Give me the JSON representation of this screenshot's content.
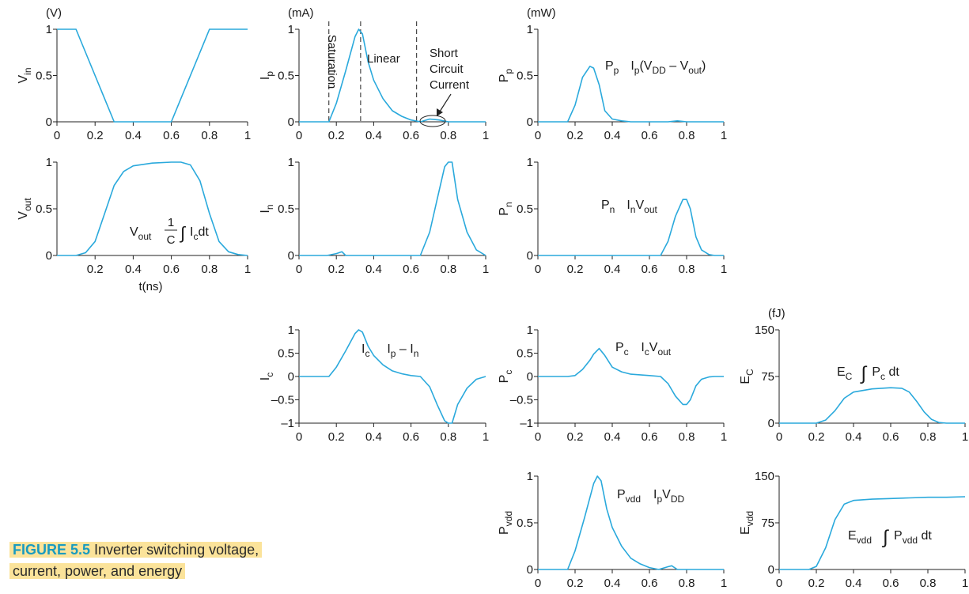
{
  "caption": {
    "number": "FIGURE 5.5",
    "text": "Inverter switching voltage, current, power, and energy"
  },
  "colors": {
    "curve": "#2aa9dc",
    "axis": "#222222",
    "caption_highlight": "#fbe39a",
    "caption_number": "#1a9bbf"
  },
  "chart_data": [
    {
      "id": "vin",
      "type": "line",
      "unit": "(V)",
      "ylabel": "V",
      "ylabel_sub": "in",
      "xlabel": "",
      "xlim": [
        0,
        1
      ],
      "ylim": [
        0,
        1
      ],
      "xticks": [
        "0",
        "0.2",
        "0.4",
        "0.6",
        "0.8",
        "1"
      ],
      "yticks": [
        "0",
        "0.5",
        "1"
      ],
      "x": [
        0,
        0.1,
        0.3,
        0.6,
        0.8,
        1.0
      ],
      "y": [
        1,
        1,
        0,
        0,
        1,
        1
      ]
    },
    {
      "id": "ip",
      "type": "line",
      "unit": "(mA)",
      "ylabel": "I",
      "ylabel_sub": "p",
      "xlabel": "",
      "xlim": [
        0,
        1
      ],
      "ylim": [
        0,
        1
      ],
      "xticks": [
        "0",
        "0.2",
        "0.4",
        "0.6",
        "0.8",
        "1"
      ],
      "yticks": [
        "0",
        "0.5",
        "1"
      ],
      "x": [
        0,
        0.16,
        0.2,
        0.25,
        0.3,
        0.32,
        0.34,
        0.37,
        0.4,
        0.45,
        0.5,
        0.55,
        0.6,
        0.65,
        0.7,
        0.75,
        0.8,
        0.9,
        1.0
      ],
      "y": [
        0,
        0,
        0.2,
        0.55,
        0.92,
        1.0,
        0.95,
        0.65,
        0.45,
        0.25,
        0.12,
        0.06,
        0.02,
        0.0,
        0.03,
        0.02,
        0.0,
        0,
        0
      ],
      "dashed_x": [
        0.16,
        0.33,
        0.63
      ],
      "annotations": [
        "Saturation",
        "Linear",
        "Short",
        "Circuit",
        "Current"
      ]
    },
    {
      "id": "pp",
      "type": "line",
      "unit": "(mW)",
      "ylabel": "P",
      "ylabel_sub": "p",
      "xlabel": "",
      "xlim": [
        0,
        1
      ],
      "ylim": [
        0,
        1
      ],
      "xticks": [
        "0",
        "0.2",
        "0.4",
        "0.6",
        "0.8",
        "1"
      ],
      "yticks": [
        "0",
        "0.5",
        "1"
      ],
      "x": [
        0,
        0.16,
        0.2,
        0.24,
        0.28,
        0.3,
        0.33,
        0.36,
        0.4,
        0.45,
        0.5,
        0.7,
        0.75,
        0.8,
        1.0
      ],
      "y": [
        0,
        0,
        0.18,
        0.48,
        0.6,
        0.58,
        0.4,
        0.12,
        0.03,
        0.01,
        0.0,
        0.0,
        0.01,
        0.0,
        0
      ],
      "eq_name": "P",
      "eq_name_sub": "p",
      "eq_expr": [
        "I",
        "p",
        "(V",
        "DD",
        " – V",
        "out",
        ")"
      ]
    },
    {
      "id": "vout",
      "type": "line",
      "unit": "",
      "ylabel": "V",
      "ylabel_sub": "out",
      "xlabel": "t(ns)",
      "xlim": [
        0,
        1
      ],
      "ylim": [
        0,
        1
      ],
      "xticks": [
        "0.2",
        "0.4",
        "0.6",
        "0.8",
        "1"
      ],
      "yticks": [
        "0",
        "0.5",
        "1"
      ],
      "x": [
        0,
        0.1,
        0.15,
        0.2,
        0.25,
        0.3,
        0.35,
        0.4,
        0.5,
        0.6,
        0.65,
        0.7,
        0.75,
        0.8,
        0.85,
        0.9,
        0.95,
        1.0
      ],
      "y": [
        0,
        0,
        0.03,
        0.15,
        0.45,
        0.75,
        0.9,
        0.96,
        0.99,
        1.0,
        1.0,
        0.97,
        0.8,
        0.45,
        0.15,
        0.04,
        0.01,
        0
      ],
      "eq_name": "V",
      "eq_name_sub": "out",
      "eq_frac_num": "1",
      "eq_frac_den": "C",
      "eq_integrand": [
        "I",
        "c",
        "dt"
      ]
    },
    {
      "id": "in",
      "type": "line",
      "unit": "",
      "ylabel": "I",
      "ylabel_sub": "n",
      "xlabel": "",
      "xlim": [
        0,
        1
      ],
      "ylim": [
        0,
        1
      ],
      "xticks": [
        "0",
        "0.2",
        "0.4",
        "0.6",
        "0.8",
        "1"
      ],
      "yticks": [
        "0",
        "0.5",
        "1"
      ],
      "x": [
        0,
        0.15,
        0.2,
        0.23,
        0.25,
        0.3,
        0.65,
        0.7,
        0.74,
        0.78,
        0.8,
        0.82,
        0.85,
        0.9,
        0.95,
        1.0
      ],
      "y": [
        0,
        0,
        0.02,
        0.04,
        0.0,
        0,
        0,
        0.25,
        0.6,
        0.95,
        1.0,
        1.0,
        0.6,
        0.25,
        0.06,
        0
      ]
    },
    {
      "id": "pn",
      "type": "line",
      "unit": "",
      "ylabel": "P",
      "ylabel_sub": "n",
      "xlabel": "",
      "xlim": [
        0,
        1
      ],
      "ylim": [
        0,
        1
      ],
      "xticks": [
        "0",
        "0.2",
        "0.4",
        "0.6",
        "0.8",
        "1"
      ],
      "yticks": [
        "0",
        "0.5",
        "1"
      ],
      "x": [
        0,
        0.66,
        0.7,
        0.74,
        0.78,
        0.8,
        0.82,
        0.85,
        0.88,
        0.92,
        0.95,
        1.0
      ],
      "y": [
        0,
        0,
        0.15,
        0.42,
        0.6,
        0.6,
        0.5,
        0.2,
        0.06,
        0.01,
        0.0,
        0
      ],
      "eq_name": "P",
      "eq_name_sub": "n",
      "eq_expr": [
        "I",
        "n",
        "V",
        "out"
      ]
    },
    {
      "id": "ic",
      "type": "line",
      "unit": "",
      "ylabel": "I",
      "ylabel_sub": "c",
      "xlabel": "",
      "xlim": [
        0,
        1
      ],
      "ylim": [
        -1,
        1
      ],
      "xticks": [
        "0",
        "0.2",
        "0.4",
        "0.6",
        "0.8",
        "1"
      ],
      "yticks": [
        "–1",
        "–0.5",
        "0",
        "0.5",
        "1"
      ],
      "x": [
        0,
        0.16,
        0.2,
        0.25,
        0.3,
        0.32,
        0.34,
        0.37,
        0.4,
        0.45,
        0.5,
        0.55,
        0.6,
        0.65,
        0.7,
        0.74,
        0.78,
        0.8,
        0.82,
        0.85,
        0.9,
        0.95,
        1.0
      ],
      "y": [
        0,
        0,
        0.2,
        0.55,
        0.92,
        1.0,
        0.95,
        0.65,
        0.45,
        0.25,
        0.12,
        0.06,
        0.02,
        0.0,
        -0.22,
        -0.6,
        -0.95,
        -1.0,
        -1.0,
        -0.6,
        -0.25,
        -0.06,
        0
      ],
      "eq_name": "I",
      "eq_name_sub": "c",
      "eq_expr": [
        "I",
        "p",
        " – I",
        "n"
      ]
    },
    {
      "id": "pc",
      "type": "line",
      "unit": "",
      "ylabel": "P",
      "ylabel_sub": "c",
      "xlabel": "",
      "xlim": [
        0,
        1
      ],
      "ylim": [
        -1,
        1
      ],
      "xticks": [
        "0",
        "0.2",
        "0.4",
        "0.6",
        "0.8",
        "1"
      ],
      "yticks": [
        "–1",
        "–0.5",
        "0",
        "0.5",
        "1"
      ],
      "x": [
        0,
        0.16,
        0.2,
        0.24,
        0.28,
        0.3,
        0.33,
        0.36,
        0.4,
        0.45,
        0.5,
        0.6,
        0.66,
        0.7,
        0.74,
        0.78,
        0.8,
        0.82,
        0.85,
        0.88,
        0.92,
        0.95,
        1.0
      ],
      "y": [
        0,
        0,
        0.02,
        0.15,
        0.35,
        0.48,
        0.6,
        0.45,
        0.2,
        0.1,
        0.05,
        0.02,
        0.0,
        -0.15,
        -0.42,
        -0.6,
        -0.6,
        -0.5,
        -0.2,
        -0.06,
        -0.01,
        0.0,
        0
      ],
      "eq_name": "P",
      "eq_name_sub": "c",
      "eq_expr": [
        "I",
        "c",
        "V",
        "out"
      ]
    },
    {
      "id": "ec",
      "type": "line",
      "unit": "(fJ)",
      "ylabel": "E",
      "ylabel_sub": "C",
      "xlabel": "",
      "xlim": [
        0,
        1
      ],
      "ylim": [
        0,
        150
      ],
      "xticks": [
        "0",
        "0.2",
        "0.4",
        "0.6",
        "0.8",
        "1"
      ],
      "yticks": [
        "0",
        "75",
        "150"
      ],
      "x": [
        0,
        0.2,
        0.25,
        0.3,
        0.35,
        0.4,
        0.5,
        0.6,
        0.66,
        0.7,
        0.74,
        0.78,
        0.82,
        0.86,
        0.9,
        1.0
      ],
      "y": [
        0,
        0,
        5,
        20,
        40,
        50,
        55,
        57,
        56,
        50,
        35,
        18,
        6,
        1,
        0,
        0
      ],
      "eq_name": "E",
      "eq_name_sub": "C",
      "eq_integrand": [
        "P",
        "c",
        " dt"
      ]
    },
    {
      "id": "pvdd",
      "type": "line",
      "unit": "",
      "ylabel": "P",
      "ylabel_sub": "vdd",
      "xlabel": "",
      "xlim": [
        0,
        1
      ],
      "ylim": [
        0,
        1
      ],
      "xticks": [
        "0",
        "0.2",
        "0.4",
        "0.6",
        "0.8",
        "1"
      ],
      "yticks": [
        "0",
        "0.5",
        "1"
      ],
      "x": [
        0,
        0.16,
        0.2,
        0.25,
        0.3,
        0.32,
        0.34,
        0.37,
        0.4,
        0.45,
        0.5,
        0.55,
        0.6,
        0.65,
        0.7,
        0.72,
        0.75,
        0.8,
        1.0
      ],
      "y": [
        0,
        0,
        0.2,
        0.55,
        0.92,
        1.0,
        0.95,
        0.65,
        0.45,
        0.25,
        0.12,
        0.06,
        0.02,
        0.0,
        0.03,
        0.04,
        0.0,
        0,
        0
      ],
      "eq_name": "P",
      "eq_name_sub": "vdd",
      "eq_expr": [
        "I",
        "p",
        "V",
        "DD"
      ]
    },
    {
      "id": "evdd",
      "type": "line",
      "unit": "",
      "ylabel": "E",
      "ylabel_sub": "vdd",
      "xlabel": "",
      "xlim": [
        0,
        1
      ],
      "ylim": [
        0,
        150
      ],
      "xticks": [
        "0",
        "0.2",
        "0.4",
        "0.6",
        "0.8",
        "1"
      ],
      "yticks": [
        "0",
        "75",
        "150"
      ],
      "x": [
        0,
        0.16,
        0.2,
        0.25,
        0.3,
        0.35,
        0.4,
        0.5,
        0.6,
        0.7,
        0.8,
        0.9,
        1.0
      ],
      "y": [
        0,
        0,
        5,
        35,
        80,
        105,
        111,
        113,
        114,
        115,
        116,
        116,
        117
      ],
      "eq_name": "E",
      "eq_name_sub": "vdd",
      "eq_integrand": [
        "P",
        "vdd",
        " dt"
      ]
    }
  ]
}
